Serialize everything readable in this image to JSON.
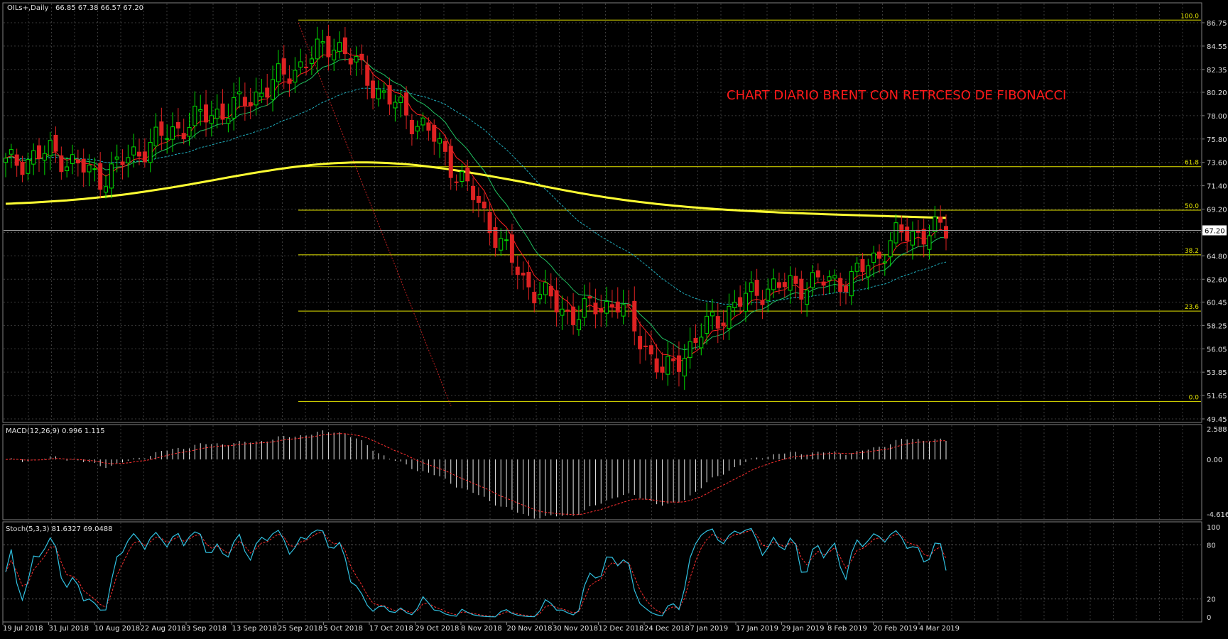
{
  "chart_header": {
    "symbol": "OILs+,Daily",
    "ohlc": "66.85 67.38 66.57 67.20"
  },
  "annotation": "CHART DIARIO BRENT CON RETRCESO DE FIBONACCI",
  "colors": {
    "background": "#000000",
    "grid": "#3a3a3a",
    "bull_candle": "#00dd00",
    "bear_candle": "#dd2222",
    "fib_lines": "#e6e600",
    "ma_200": "#ffff33",
    "ma_fast": "#ff2020",
    "ma_slow": "#20c060",
    "ma_dashed": "#20b0c0",
    "macd_hist": "#e8e8e8",
    "macd_signal": "#ff3030",
    "stoch_main": "#30c0e0",
    "stoch_signal": "#ff3030",
    "price_tag_bg": "#ffffff"
  },
  "price_axis": {
    "ticks": [
      "86.75",
      "84.55",
      "82.35",
      "80.20",
      "78.00",
      "75.80",
      "73.60",
      "71.40",
      "69.20",
      "67.00",
      "64.80",
      "62.60",
      "60.45",
      "58.25",
      "56.05",
      "53.85",
      "51.65",
      "49.45"
    ],
    "current_price": "67.20"
  },
  "fibonacci": {
    "levels": [
      {
        "label": "100.0",
        "price": 87.0
      },
      {
        "label": "61.8",
        "price": 73.2
      },
      {
        "label": "50.0",
        "price": 69.1
      },
      {
        "label": "38.2",
        "price": 64.9
      },
      {
        "label": "23.6",
        "price": 59.6
      },
      {
        "label": "0.0",
        "price": 51.1
      }
    ]
  },
  "time_axis": {
    "labels": [
      "19 Jul 2018",
      "31 Jul 2018",
      "10 Aug 2018",
      "22 Aug 2018",
      "3 Sep 2018",
      "13 Sep 2018",
      "25 Sep 2018",
      "5 Oct 2018",
      "17 Oct 2018",
      "29 Oct 2018",
      "8 Nov 2018",
      "20 Nov 2018",
      "30 Nov 2018",
      "12 Dec 2018",
      "24 Dec 2018",
      "7 Jan 2019",
      "17 Jan 2019",
      "29 Jan 2019",
      "8 Feb 2019",
      "20 Feb 2019",
      "4 Mar 2019"
    ]
  },
  "macd": {
    "label": "MACD(12,26,9) 0.996 1.115",
    "ticks": [
      "2.588",
      "0.00",
      "-4.616"
    ]
  },
  "stoch": {
    "label": "Stoch(5,3,3) 81.6327 69.0488",
    "ticks": [
      "100",
      "80",
      "20",
      "0"
    ]
  },
  "chart_data": {
    "type": "candlestick",
    "x": [
      "19 Jul 2018",
      "31 Jul 2018",
      "10 Aug 2018",
      "22 Aug 2018",
      "3 Sep 2018",
      "13 Sep 2018",
      "25 Sep 2018",
      "5 Oct 2018",
      "17 Oct 2018",
      "29 Oct 2018",
      "8 Nov 2018",
      "20 Nov 2018",
      "30 Nov 2018",
      "12 Dec 2018",
      "24 Dec 2018",
      "7 Jan 2019",
      "17 Jan 2019",
      "29 Jan 2019",
      "8 Feb 2019",
      "20 Feb 2019",
      "4 Mar 2019"
    ],
    "close": [
      73.4,
      74.6,
      72.1,
      75.2,
      77.6,
      79.0,
      82.0,
      85.0,
      80.0,
      76.5,
      70.0,
      62.5,
      59.2,
      60.5,
      53.5,
      58.5,
      61.6,
      62.2,
      62.6,
      66.8,
      67.2
    ],
    "ylim": [
      49.45,
      86.75
    ]
  }
}
